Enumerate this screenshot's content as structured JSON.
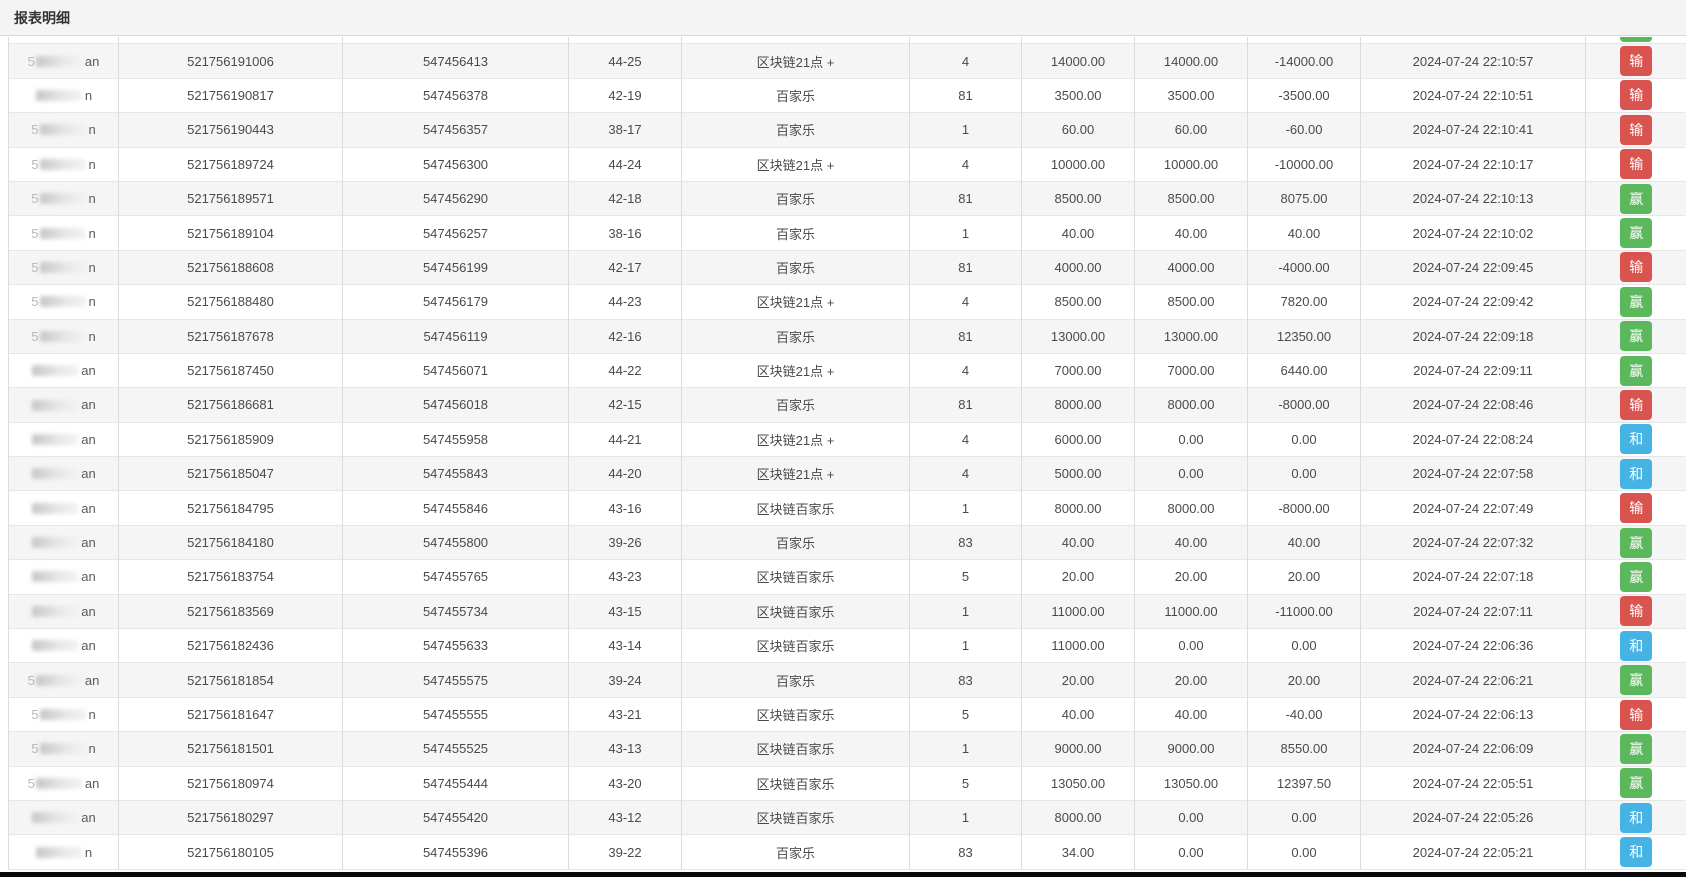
{
  "page": {
    "title": "报表明细"
  },
  "colors": {
    "badge-lose": "#d9534f",
    "badge-win": "#5cb85c",
    "badge-draw": "#45b4e4",
    "heading-bg": "#f4f4f4",
    "stripe": "#f5f5f5",
    "border": "#dcdcdc",
    "bottom-bar": "#0a0a0c"
  },
  "result_legend": {
    "lose": "输",
    "win": "赢",
    "draw": "和"
  },
  "table": {
    "top_clipped_row": {
      "user": {
        "prefix": "",
        "suffix": ""
      },
      "order_no": "",
      "game_serial": "",
      "period": "",
      "game_name": "",
      "play_code": "",
      "bet_amount": "",
      "valid_amount": "",
      "win_loss": "",
      "bet_time": "",
      "result": "赢"
    },
    "rows": [
      {
        "user": {
          "prefix": "5",
          "suffix": "an"
        },
        "order_no": "521756191006",
        "game_serial": "547456413",
        "period": "44-25",
        "game_name": "区块链21点 +",
        "play_code": "4",
        "bet_amount": "14000.00",
        "valid_amount": "14000.00",
        "win_loss": "-14000.00",
        "bet_time": "2024-07-24 22:10:57",
        "result": "输"
      },
      {
        "user": {
          "prefix": "",
          "suffix": "n"
        },
        "order_no": "521756190817",
        "game_serial": "547456378",
        "period": "42-19",
        "game_name": "百家乐",
        "play_code": "81",
        "bet_amount": "3500.00",
        "valid_amount": "3500.00",
        "win_loss": "-3500.00",
        "bet_time": "2024-07-24 22:10:51",
        "result": "输"
      },
      {
        "user": {
          "prefix": "5",
          "suffix": "n"
        },
        "order_no": "521756190443",
        "game_serial": "547456357",
        "period": "38-17",
        "game_name": "百家乐",
        "play_code": "1",
        "bet_amount": "60.00",
        "valid_amount": "60.00",
        "win_loss": "-60.00",
        "bet_time": "2024-07-24 22:10:41",
        "result": "输"
      },
      {
        "user": {
          "prefix": "5",
          "suffix": "n"
        },
        "order_no": "521756189724",
        "game_serial": "547456300",
        "period": "44-24",
        "game_name": "区块链21点 +",
        "play_code": "4",
        "bet_amount": "10000.00",
        "valid_amount": "10000.00",
        "win_loss": "-10000.00",
        "bet_time": "2024-07-24 22:10:17",
        "result": "输"
      },
      {
        "user": {
          "prefix": "5",
          "suffix": "n"
        },
        "order_no": "521756189571",
        "game_serial": "547456290",
        "period": "42-18",
        "game_name": "百家乐",
        "play_code": "81",
        "bet_amount": "8500.00",
        "valid_amount": "8500.00",
        "win_loss": "8075.00",
        "bet_time": "2024-07-24 22:10:13",
        "result": "赢"
      },
      {
        "user": {
          "prefix": "5",
          "suffix": "n"
        },
        "order_no": "521756189104",
        "game_serial": "547456257",
        "period": "38-16",
        "game_name": "百家乐",
        "play_code": "1",
        "bet_amount": "40.00",
        "valid_amount": "40.00",
        "win_loss": "40.00",
        "bet_time": "2024-07-24 22:10:02",
        "result": "赢"
      },
      {
        "user": {
          "prefix": "5",
          "suffix": "n"
        },
        "order_no": "521756188608",
        "game_serial": "547456199",
        "period": "42-17",
        "game_name": "百家乐",
        "play_code": "81",
        "bet_amount": "4000.00",
        "valid_amount": "4000.00",
        "win_loss": "-4000.00",
        "bet_time": "2024-07-24 22:09:45",
        "result": "输"
      },
      {
        "user": {
          "prefix": "5",
          "suffix": "n"
        },
        "order_no": "521756188480",
        "game_serial": "547456179",
        "period": "44-23",
        "game_name": "区块链21点 +",
        "play_code": "4",
        "bet_amount": "8500.00",
        "valid_amount": "8500.00",
        "win_loss": "7820.00",
        "bet_time": "2024-07-24 22:09:42",
        "result": "赢"
      },
      {
        "user": {
          "prefix": "5",
          "suffix": "n"
        },
        "order_no": "521756187678",
        "game_serial": "547456119",
        "period": "42-16",
        "game_name": "百家乐",
        "play_code": "81",
        "bet_amount": "13000.00",
        "valid_amount": "13000.00",
        "win_loss": "12350.00",
        "bet_time": "2024-07-24 22:09:18",
        "result": "赢"
      },
      {
        "user": {
          "prefix": "",
          "suffix": "an"
        },
        "order_no": "521756187450",
        "game_serial": "547456071",
        "period": "44-22",
        "game_name": "区块链21点 +",
        "play_code": "4",
        "bet_amount": "7000.00",
        "valid_amount": "7000.00",
        "win_loss": "6440.00",
        "bet_time": "2024-07-24 22:09:11",
        "result": "赢"
      },
      {
        "user": {
          "prefix": "",
          "suffix": "an"
        },
        "order_no": "521756186681",
        "game_serial": "547456018",
        "period": "42-15",
        "game_name": "百家乐",
        "play_code": "81",
        "bet_amount": "8000.00",
        "valid_amount": "8000.00",
        "win_loss": "-8000.00",
        "bet_time": "2024-07-24 22:08:46",
        "result": "输"
      },
      {
        "user": {
          "prefix": "",
          "suffix": "an"
        },
        "order_no": "521756185909",
        "game_serial": "547455958",
        "period": "44-21",
        "game_name": "区块链21点 +",
        "play_code": "4",
        "bet_amount": "6000.00",
        "valid_amount": "0.00",
        "win_loss": "0.00",
        "bet_time": "2024-07-24 22:08:24",
        "result": "和"
      },
      {
        "user": {
          "prefix": "",
          "suffix": "an"
        },
        "order_no": "521756185047",
        "game_serial": "547455843",
        "period": "44-20",
        "game_name": "区块链21点 +",
        "play_code": "4",
        "bet_amount": "5000.00",
        "valid_amount": "0.00",
        "win_loss": "0.00",
        "bet_time": "2024-07-24 22:07:58",
        "result": "和"
      },
      {
        "user": {
          "prefix": "",
          "suffix": "an"
        },
        "order_no": "521756184795",
        "game_serial": "547455846",
        "period": "43-16",
        "game_name": "区块链百家乐",
        "play_code": "1",
        "bet_amount": "8000.00",
        "valid_amount": "8000.00",
        "win_loss": "-8000.00",
        "bet_time": "2024-07-24 22:07:49",
        "result": "输"
      },
      {
        "user": {
          "prefix": "",
          "suffix": "an"
        },
        "order_no": "521756184180",
        "game_serial": "547455800",
        "period": "39-26",
        "game_name": "百家乐",
        "play_code": "83",
        "bet_amount": "40.00",
        "valid_amount": "40.00",
        "win_loss": "40.00",
        "bet_time": "2024-07-24 22:07:32",
        "result": "赢"
      },
      {
        "user": {
          "prefix": "",
          "suffix": "an"
        },
        "order_no": "521756183754",
        "game_serial": "547455765",
        "period": "43-23",
        "game_name": "区块链百家乐",
        "play_code": "5",
        "bet_amount": "20.00",
        "valid_amount": "20.00",
        "win_loss": "20.00",
        "bet_time": "2024-07-24 22:07:18",
        "result": "赢"
      },
      {
        "user": {
          "prefix": "",
          "suffix": "an"
        },
        "order_no": "521756183569",
        "game_serial": "547455734",
        "period": "43-15",
        "game_name": "区块链百家乐",
        "play_code": "1",
        "bet_amount": "11000.00",
        "valid_amount": "11000.00",
        "win_loss": "-11000.00",
        "bet_time": "2024-07-24 22:07:11",
        "result": "输"
      },
      {
        "user": {
          "prefix": "",
          "suffix": "an"
        },
        "order_no": "521756182436",
        "game_serial": "547455633",
        "period": "43-14",
        "game_name": "区块链百家乐",
        "play_code": "1",
        "bet_amount": "11000.00",
        "valid_amount": "0.00",
        "win_loss": "0.00",
        "bet_time": "2024-07-24 22:06:36",
        "result": "和"
      },
      {
        "user": {
          "prefix": "5",
          "suffix": "an"
        },
        "order_no": "521756181854",
        "game_serial": "547455575",
        "period": "39-24",
        "game_name": "百家乐",
        "play_code": "83",
        "bet_amount": "20.00",
        "valid_amount": "20.00",
        "win_loss": "20.00",
        "bet_time": "2024-07-24 22:06:21",
        "result": "赢"
      },
      {
        "user": {
          "prefix": "5",
          "suffix": "n"
        },
        "order_no": "521756181647",
        "game_serial": "547455555",
        "period": "43-21",
        "game_name": "区块链百家乐",
        "play_code": "5",
        "bet_amount": "40.00",
        "valid_amount": "40.00",
        "win_loss": "-40.00",
        "bet_time": "2024-07-24 22:06:13",
        "result": "输"
      },
      {
        "user": {
          "prefix": "5",
          "suffix": "n"
        },
        "order_no": "521756181501",
        "game_serial": "547455525",
        "period": "43-13",
        "game_name": "区块链百家乐",
        "play_code": "1",
        "bet_amount": "9000.00",
        "valid_amount": "9000.00",
        "win_loss": "8550.00",
        "bet_time": "2024-07-24 22:06:09",
        "result": "赢"
      },
      {
        "user": {
          "prefix": "5",
          "suffix": "an"
        },
        "order_no": "521756180974",
        "game_serial": "547455444",
        "period": "43-20",
        "game_name": "区块链百家乐",
        "play_code": "5",
        "bet_amount": "13050.00",
        "valid_amount": "13050.00",
        "win_loss": "12397.50",
        "bet_time": "2024-07-24 22:05:51",
        "result": "赢"
      },
      {
        "user": {
          "prefix": "",
          "suffix": "an"
        },
        "order_no": "521756180297",
        "game_serial": "547455420",
        "period": "43-12",
        "game_name": "区块链百家乐",
        "play_code": "1",
        "bet_amount": "8000.00",
        "valid_amount": "0.00",
        "win_loss": "0.00",
        "bet_time": "2024-07-24 22:05:26",
        "result": "和"
      },
      {
        "user": {
          "prefix": "",
          "suffix": "n"
        },
        "order_no": "521756180105",
        "game_serial": "547455396",
        "period": "39-22",
        "game_name": "百家乐",
        "play_code": "83",
        "bet_amount": "34.00",
        "valid_amount": "0.00",
        "win_loss": "0.00",
        "bet_time": "2024-07-24 22:05:21",
        "result": "和"
      }
    ]
  }
}
